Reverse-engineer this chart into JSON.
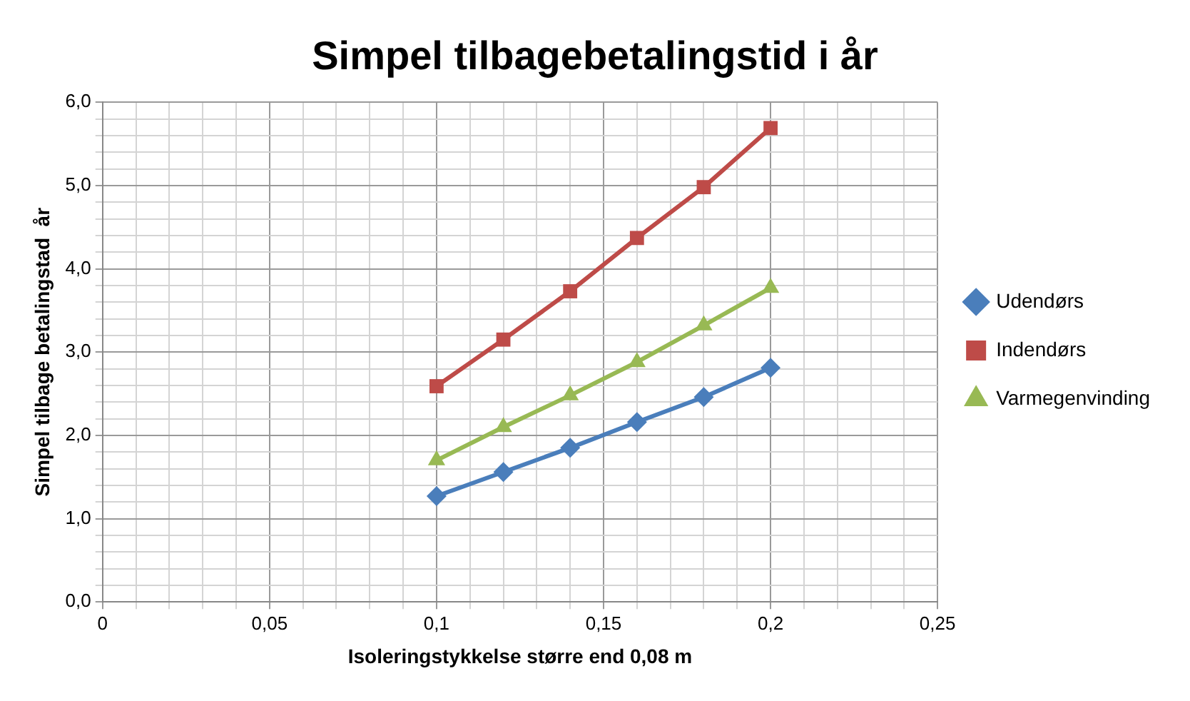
{
  "chart_data": {
    "type": "line",
    "title": "Simpel tilbagebetalingstid i år",
    "xlabel": "Isoleringstykkelse større end 0,08 m",
    "ylabel": "Simpel tilbage betalingstad  år",
    "x": [
      0.1,
      0.12,
      0.14,
      0.16,
      0.18,
      0.2
    ],
    "series": [
      {
        "name": "Udendørs",
        "color": "#4a7ebb",
        "marker": "diamond",
        "values": [
          1.27,
          1.56,
          1.85,
          2.16,
          2.46,
          2.81
        ]
      },
      {
        "name": "Indendørs",
        "color": "#be4b48",
        "marker": "square",
        "values": [
          2.59,
          3.15,
          3.73,
          4.37,
          4.98,
          5.69
        ]
      },
      {
        "name": "Varmegenvinding",
        "color": "#98b954",
        "marker": "triangle",
        "values": [
          1.7,
          2.1,
          2.48,
          2.88,
          3.32,
          3.77
        ]
      }
    ],
    "xlim": [
      0,
      0.25
    ],
    "xticks": [
      0,
      {
        "value": 0.01,
        "label": null
      },
      {
        "value": 0.02,
        "label": null
      },
      {
        "value": 0.03,
        "label": null
      },
      {
        "value": 0.04,
        "label": null
      },
      {
        "value": 0.05,
        "label": "0,05"
      },
      {
        "value": 0.06,
        "label": null
      },
      {
        "value": 0.07,
        "label": null
      },
      {
        "value": 0.08,
        "label": null
      },
      {
        "value": 0.09,
        "label": null
      },
      {
        "value": 0.1,
        "label": "0,1"
      },
      {
        "value": 0.11,
        "label": null
      },
      {
        "value": 0.12,
        "label": null
      },
      {
        "value": 0.13,
        "label": null
      },
      {
        "value": 0.14,
        "label": null
      },
      {
        "value": 0.15,
        "label": "0,15"
      },
      {
        "value": 0.16,
        "label": null
      },
      {
        "value": 0.17,
        "label": null
      },
      {
        "value": 0.18,
        "label": null
      },
      {
        "value": 0.19,
        "label": null
      },
      {
        "value": 0.2,
        "label": "0,2"
      },
      {
        "value": 0.21,
        "label": null
      },
      {
        "value": 0.22,
        "label": null
      },
      {
        "value": 0.23,
        "label": null
      },
      {
        "value": 0.24,
        "label": null
      },
      {
        "value": 0.25,
        "label": "0,25"
      }
    ],
    "ylim": [
      0,
      6
    ],
    "yticks": [
      {
        "value": 0,
        "label": "0,0"
      },
      {
        "value": 0.2,
        "label": null
      },
      {
        "value": 0.4,
        "label": null
      },
      {
        "value": 0.6,
        "label": null
      },
      {
        "value": 0.8,
        "label": null
      },
      {
        "value": 1,
        "label": "1,0"
      },
      {
        "value": 1.2,
        "label": null
      },
      {
        "value": 1.4,
        "label": null
      },
      {
        "value": 1.6,
        "label": null
      },
      {
        "value": 1.8,
        "label": null
      },
      {
        "value": 2,
        "label": "2,0"
      },
      {
        "value": 2.2,
        "label": null
      },
      {
        "value": 2.4,
        "label": null
      },
      {
        "value": 2.6,
        "label": null
      },
      {
        "value": 2.8,
        "label": null
      },
      {
        "value": 3,
        "label": "3,0"
      },
      {
        "value": 3.2,
        "label": null
      },
      {
        "value": 3.4,
        "label": null
      },
      {
        "value": 3.6,
        "label": null
      },
      {
        "value": 3.8,
        "label": null
      },
      {
        "value": 4,
        "label": "4,0"
      },
      {
        "value": 4.2,
        "label": null
      },
      {
        "value": 4.4,
        "label": null
      },
      {
        "value": 4.6,
        "label": null
      },
      {
        "value": 4.8,
        "label": null
      },
      {
        "value": 5,
        "label": "5,0"
      },
      {
        "value": 5.2,
        "label": null
      },
      {
        "value": 5.4,
        "label": null
      },
      {
        "value": 5.6,
        "label": null
      },
      {
        "value": 5.8,
        "label": null
      },
      {
        "value": 6,
        "label": "6,0"
      }
    ],
    "grid": true,
    "legend": "right",
    "line_style": "solid"
  }
}
